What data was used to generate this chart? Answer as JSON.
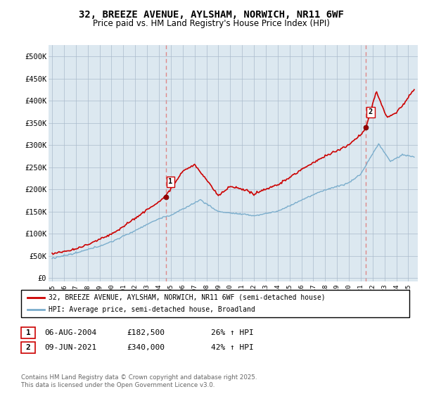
{
  "title_line1": "32, BREEZE AVENUE, AYLSHAM, NORWICH, NR11 6WF",
  "title_line2": "Price paid vs. HM Land Registry's House Price Index (HPI)",
  "yticks": [
    0,
    50000,
    100000,
    150000,
    200000,
    250000,
    300000,
    350000,
    400000,
    450000,
    500000
  ],
  "ytick_labels": [
    "£0",
    "£50K",
    "£100K",
    "£150K",
    "£200K",
    "£250K",
    "£300K",
    "£350K",
    "£400K",
    "£450K",
    "£500K"
  ],
  "ylim": [
    -8000,
    525000
  ],
  "sale1_date_num": 2004.58,
  "sale1_price": 182500,
  "sale1_label": "1",
  "sale1_date_str": "06-AUG-2004",
  "sale1_price_str": "£182,500",
  "sale1_hpi_str": "26% ↑ HPI",
  "sale2_date_num": 2021.44,
  "sale2_price": 340000,
  "sale2_label": "2",
  "sale2_date_str": "09-JUN-2021",
  "sale2_price_str": "£340,000",
  "sale2_hpi_str": "42% ↑ HPI",
  "line_color_red": "#cc0000",
  "line_color_blue": "#7aadcc",
  "marker_color_red": "#990000",
  "vline_color": "#dd8888",
  "grid_color": "#aabbcc",
  "plot_bg_color": "#dce8f0",
  "bg_color": "#ffffff",
  "legend_label_red": "32, BREEZE AVENUE, AYLSHAM, NORWICH, NR11 6WF (semi-detached house)",
  "legend_label_blue": "HPI: Average price, semi-detached house, Broadland",
  "footnote": "Contains HM Land Registry data © Crown copyright and database right 2025.\nThis data is licensed under the Open Government Licence v3.0.",
  "xlim_start": 1994.7,
  "xlim_end": 2025.8,
  "xticks": [
    1995,
    1996,
    1997,
    1998,
    1999,
    2000,
    2001,
    2002,
    2003,
    2004,
    2005,
    2006,
    2007,
    2008,
    2009,
    2010,
    2011,
    2012,
    2013,
    2014,
    2015,
    2016,
    2017,
    2018,
    2019,
    2020,
    2021,
    2022,
    2023,
    2024,
    2025
  ]
}
